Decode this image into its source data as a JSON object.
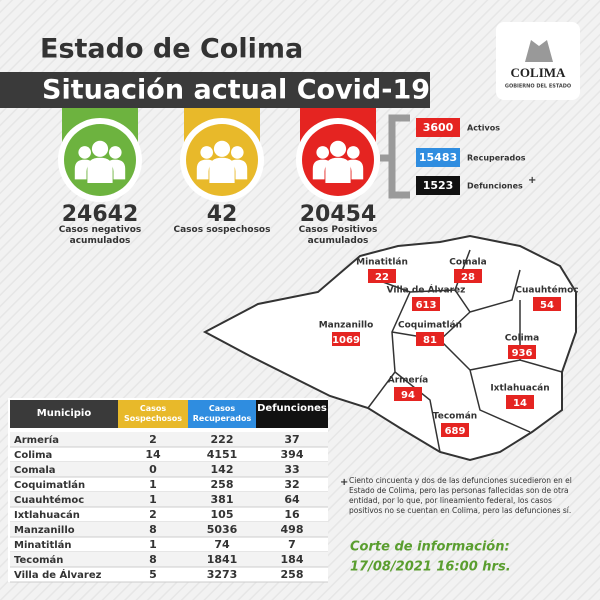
{
  "header": {
    "title": "Estado de Colima",
    "subtitle": "Situación actual Covid-19"
  },
  "logo": {
    "name": "COLIMA",
    "tagline": "GOBIERNO DEL ESTADO"
  },
  "indicators": [
    {
      "value": 24642,
      "label": "Casos negativos acumulados",
      "color": "#6db33f"
    },
    {
      "value": 42,
      "label": "Casos sospechosos",
      "color": "#e8b92a"
    },
    {
      "value": 20454,
      "label": "Casos Positivos acumulados",
      "color": "#e52421"
    }
  ],
  "breakdown": [
    {
      "value": 3600,
      "label": "Activos",
      "color": "#e52421"
    },
    {
      "value": 15483,
      "label": "Recuperados",
      "color": "#2f8de0"
    },
    {
      "value": 1523,
      "label": "Defunciones",
      "color": "#111111",
      "mark": "+"
    }
  ],
  "map": [
    {
      "name": "Minatitlán",
      "value": 22
    },
    {
      "name": "Comala",
      "value": 28
    },
    {
      "name": "Villa de Álvarez",
      "value": 613
    },
    {
      "name": "Cuauhtémoc",
      "value": 54
    },
    {
      "name": "Manzanillo",
      "value": 1069
    },
    {
      "name": "Coquimatlán",
      "value": 81
    },
    {
      "name": "Colima",
      "value": 936
    },
    {
      "name": "Armería",
      "value": 94
    },
    {
      "name": "Ixtlahuacán",
      "value": 14
    },
    {
      "name": "Tecomán",
      "value": 689
    }
  ],
  "table": {
    "headers": [
      "Municipio",
      "Casos Sospechosos",
      "Casos Recuperados",
      "Defunciones"
    ],
    "rows": [
      [
        "Armería",
        2,
        222,
        37
      ],
      [
        "Colima",
        14,
        4151,
        394
      ],
      [
        "Comala",
        0,
        142,
        33
      ],
      [
        "Coquimatlán",
        1,
        258,
        32
      ],
      [
        "Cuauhtémoc",
        1,
        381,
        64
      ],
      [
        "Ixtlahuacán",
        2,
        105,
        16
      ],
      [
        "Manzanillo",
        8,
        5036,
        498
      ],
      [
        "Minatitlán",
        1,
        74,
        7
      ],
      [
        "Tecomán",
        8,
        1841,
        184
      ],
      [
        "Villa de Álvarez",
        5,
        3273,
        258
      ]
    ]
  },
  "footnote": {
    "mark": "+",
    "text": "Ciento cincuenta y dos de las defunciones sucedieron en el Estado de Colima, pero las personas fallecidas son de otra entidad, por lo que, por lineamiento federal, los casos positivos no se cuentan en Colima, pero las defunciones sí."
  },
  "cutoff": {
    "label": "Corte de información:",
    "datetime": "17/08/2021 16:00 hrs."
  }
}
